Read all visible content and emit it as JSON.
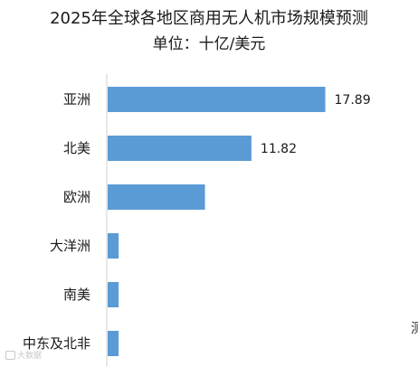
{
  "chart_data": {
    "type": "bar",
    "orientation": "horizontal",
    "title": "2025年全球各地区商用无人机市场规模预测",
    "subtitle": "单位：十亿/美元",
    "categories": [
      "亚洲",
      "北美",
      "欧洲",
      "大洋洲",
      "南美",
      "中东及北非"
    ],
    "values": [
      17.89,
      11.82,
      8.0,
      0.9,
      0.9,
      0.9
    ],
    "data_labels": [
      "17.89",
      "11.82",
      "",
      "",
      "",
      ""
    ],
    "bar_color": "#5b9bd5",
    "xlim": [
      0,
      18
    ],
    "grid": false,
    "legend": "none"
  },
  "watermark": {
    "text": "大数据",
    "icon": "weibo-icon"
  },
  "edge_text": "测"
}
